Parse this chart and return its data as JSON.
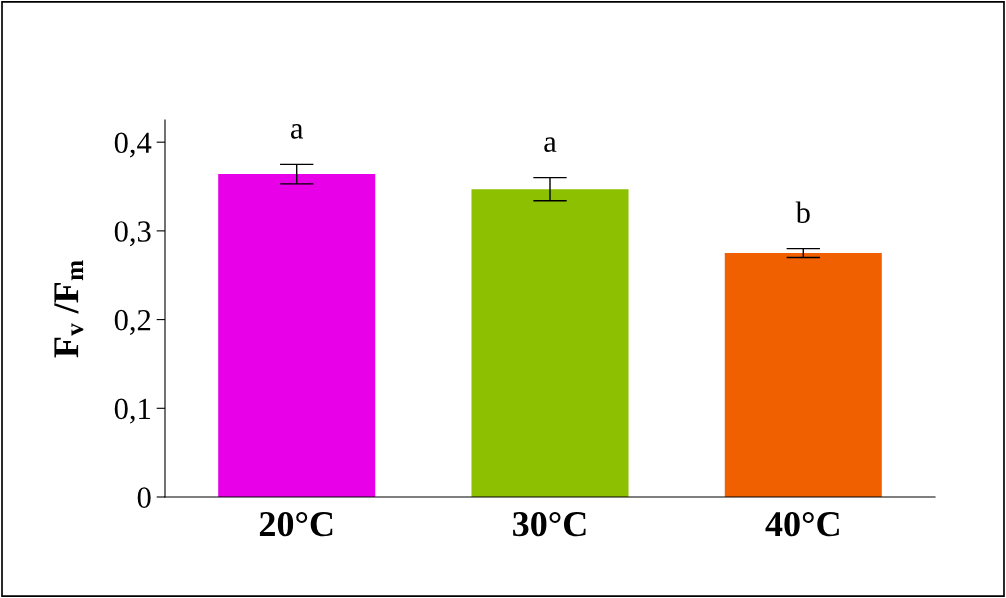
{
  "chart_data": {
    "type": "bar",
    "categories": [
      "20°C",
      "30°C",
      "40°C"
    ],
    "values": [
      0.364,
      0.347,
      0.275
    ],
    "errors": [
      0.011,
      0.013,
      0.005
    ],
    "colors": [
      "#e800e8",
      "#8cc000",
      "#f06000"
    ],
    "ylabel": "F$_{v}$ /F$_{m}$",
    "ylim": [
      0,
      0.425
    ],
    "yticks": [
      0,
      {
        "value": 0.1,
        "label": "0,1"
      },
      {
        "value": 0.2,
        "label": "0,2"
      },
      {
        "value": 0.3,
        "label": "0,3"
      },
      {
        "value": 0.4,
        "label": "0,4"
      }
    ],
    "annotations": [
      "a",
      "a",
      "b"
    ],
    "grid": false,
    "legend": false
  }
}
